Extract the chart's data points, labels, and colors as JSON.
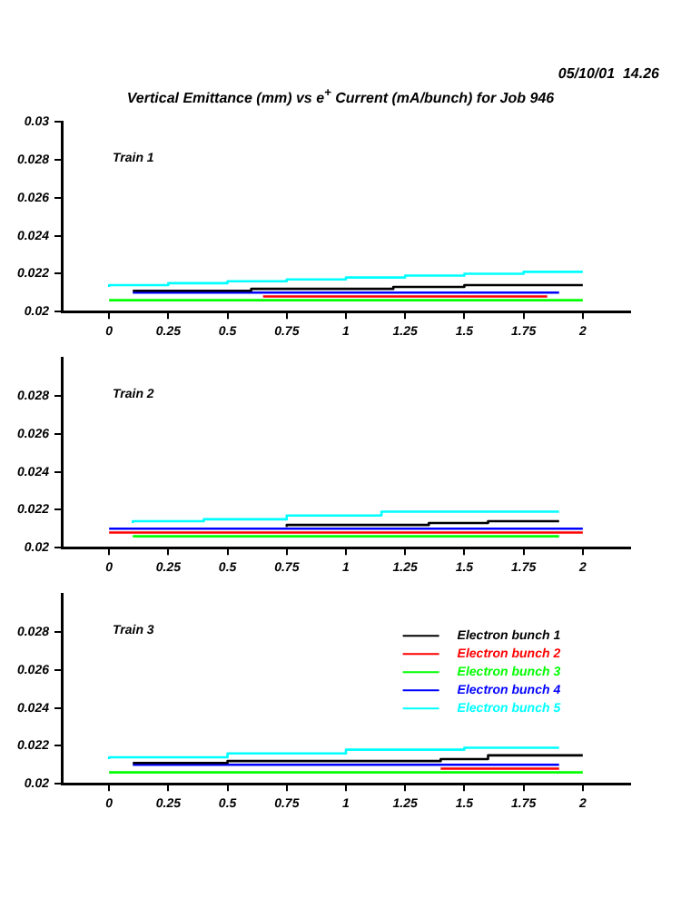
{
  "chart_data": [
    {
      "type": "step",
      "title": "Vertical Emittance (mm) vs e$^{+}$ Current (mA/bunch) for Job 946",
      "annotations": [
        "05/10/01  14.26",
        "Train 1"
      ],
      "xlim": [
        -0.2,
        2.2
      ],
      "xticks": [
        0,
        0.25,
        0.5,
        0.75,
        1,
        1.25,
        1.5,
        1.75,
        2
      ],
      "ylim": [
        0.02,
        0.03
      ],
      "yticks": [
        0.02,
        0.022,
        0.024,
        0.026,
        0.028,
        0.03
      ],
      "grid": false,
      "legend": false,
      "series": [
        {
          "color": "#000000",
          "x": [
            0.1,
            0.6,
            1.2,
            1.5,
            1.75,
            2
          ],
          "values": [
            0.0211,
            0.0211,
            0.0212,
            0.0213,
            0.0214,
            0.0214
          ]
        },
        {
          "color": "#ff0000",
          "x": [
            0.65,
            1.85
          ],
          "values": [
            0.0208,
            0.0208
          ]
        },
        {
          "color": "#00ff00",
          "x": [
            0,
            2
          ],
          "values": [
            0.0206,
            0.0206
          ]
        },
        {
          "color": "#0000ff",
          "x": [
            0.1,
            1.0,
            1.9
          ],
          "values": [
            0.021,
            0.021,
            0.021
          ]
        },
        {
          "color": "#00ffff",
          "x": [
            0,
            0.25,
            0.5,
            0.75,
            1,
            1.25,
            1.5,
            1.75,
            2
          ],
          "values": [
            0.0213,
            0.0214,
            0.0215,
            0.0216,
            0.0217,
            0.0218,
            0.0219,
            0.022,
            0.0221
          ]
        }
      ]
    },
    {
      "type": "step",
      "annotations": [
        "Train 2"
      ],
      "xlim": [
        -0.2,
        2.2
      ],
      "xticks": [
        0,
        0.25,
        0.5,
        0.75,
        1,
        1.25,
        1.5,
        1.75,
        2
      ],
      "ylim": [
        0.02,
        0.03
      ],
      "yticks": [
        0.02,
        0.022,
        0.024,
        0.026,
        0.028
      ],
      "grid": false,
      "legend": false,
      "series": [
        {
          "color": "#000000",
          "x": [
            0.75,
            1.35,
            1.6,
            1.75,
            1.9
          ],
          "values": [
            0.0211,
            0.0212,
            0.0213,
            0.0214,
            0.0214
          ]
        },
        {
          "color": "#ff0000",
          "x": [
            0,
            2
          ],
          "values": [
            0.0208,
            0.0208
          ]
        },
        {
          "color": "#00ff00",
          "x": [
            0.1,
            1.9
          ],
          "values": [
            0.0206,
            0.0206
          ]
        },
        {
          "color": "#0000ff",
          "x": [
            0,
            2
          ],
          "values": [
            0.021,
            0.021
          ]
        },
        {
          "color": "#00ffff",
          "x": [
            0.1,
            0.4,
            0.75,
            1.15,
            1.55,
            1.9
          ],
          "values": [
            0.0213,
            0.0214,
            0.0215,
            0.0217,
            0.0219,
            0.0219
          ]
        }
      ]
    },
    {
      "type": "step",
      "annotations": [
        "Train 3"
      ],
      "xlim": [
        -0.2,
        2.2
      ],
      "xticks": [
        0,
        0.25,
        0.5,
        0.75,
        1,
        1.25,
        1.5,
        1.75,
        2
      ],
      "ylim": [
        0.02,
        0.03
      ],
      "yticks": [
        0.02,
        0.022,
        0.024,
        0.026,
        0.028
      ],
      "grid": false,
      "legend": "right",
      "series": [
        {
          "name": "Electron bunch 1",
          "color": "#000000",
          "x": [
            0.1,
            0.5,
            1.4,
            1.6,
            1.75,
            2
          ],
          "values": [
            0.0211,
            0.0211,
            0.0212,
            0.0213,
            0.0215,
            0.0215
          ]
        },
        {
          "name": "Electron bunch 2",
          "color": "#ff0000",
          "x": [
            1.4,
            1.9
          ],
          "values": [
            0.0208,
            0.0208
          ]
        },
        {
          "name": "Electron bunch 3",
          "color": "#00ff00",
          "x": [
            0,
            2
          ],
          "values": [
            0.0206,
            0.0206
          ]
        },
        {
          "name": "Electron bunch 4",
          "color": "#0000ff",
          "x": [
            0.1,
            1.2,
            1.9
          ],
          "values": [
            0.021,
            0.021,
            0.021
          ]
        },
        {
          "name": "Electron bunch 5",
          "color": "#00ffff",
          "x": [
            0,
            0.5,
            1,
            1.5,
            1.9
          ],
          "values": [
            0.0213,
            0.0214,
            0.0216,
            0.0218,
            0.0219
          ]
        }
      ]
    }
  ]
}
